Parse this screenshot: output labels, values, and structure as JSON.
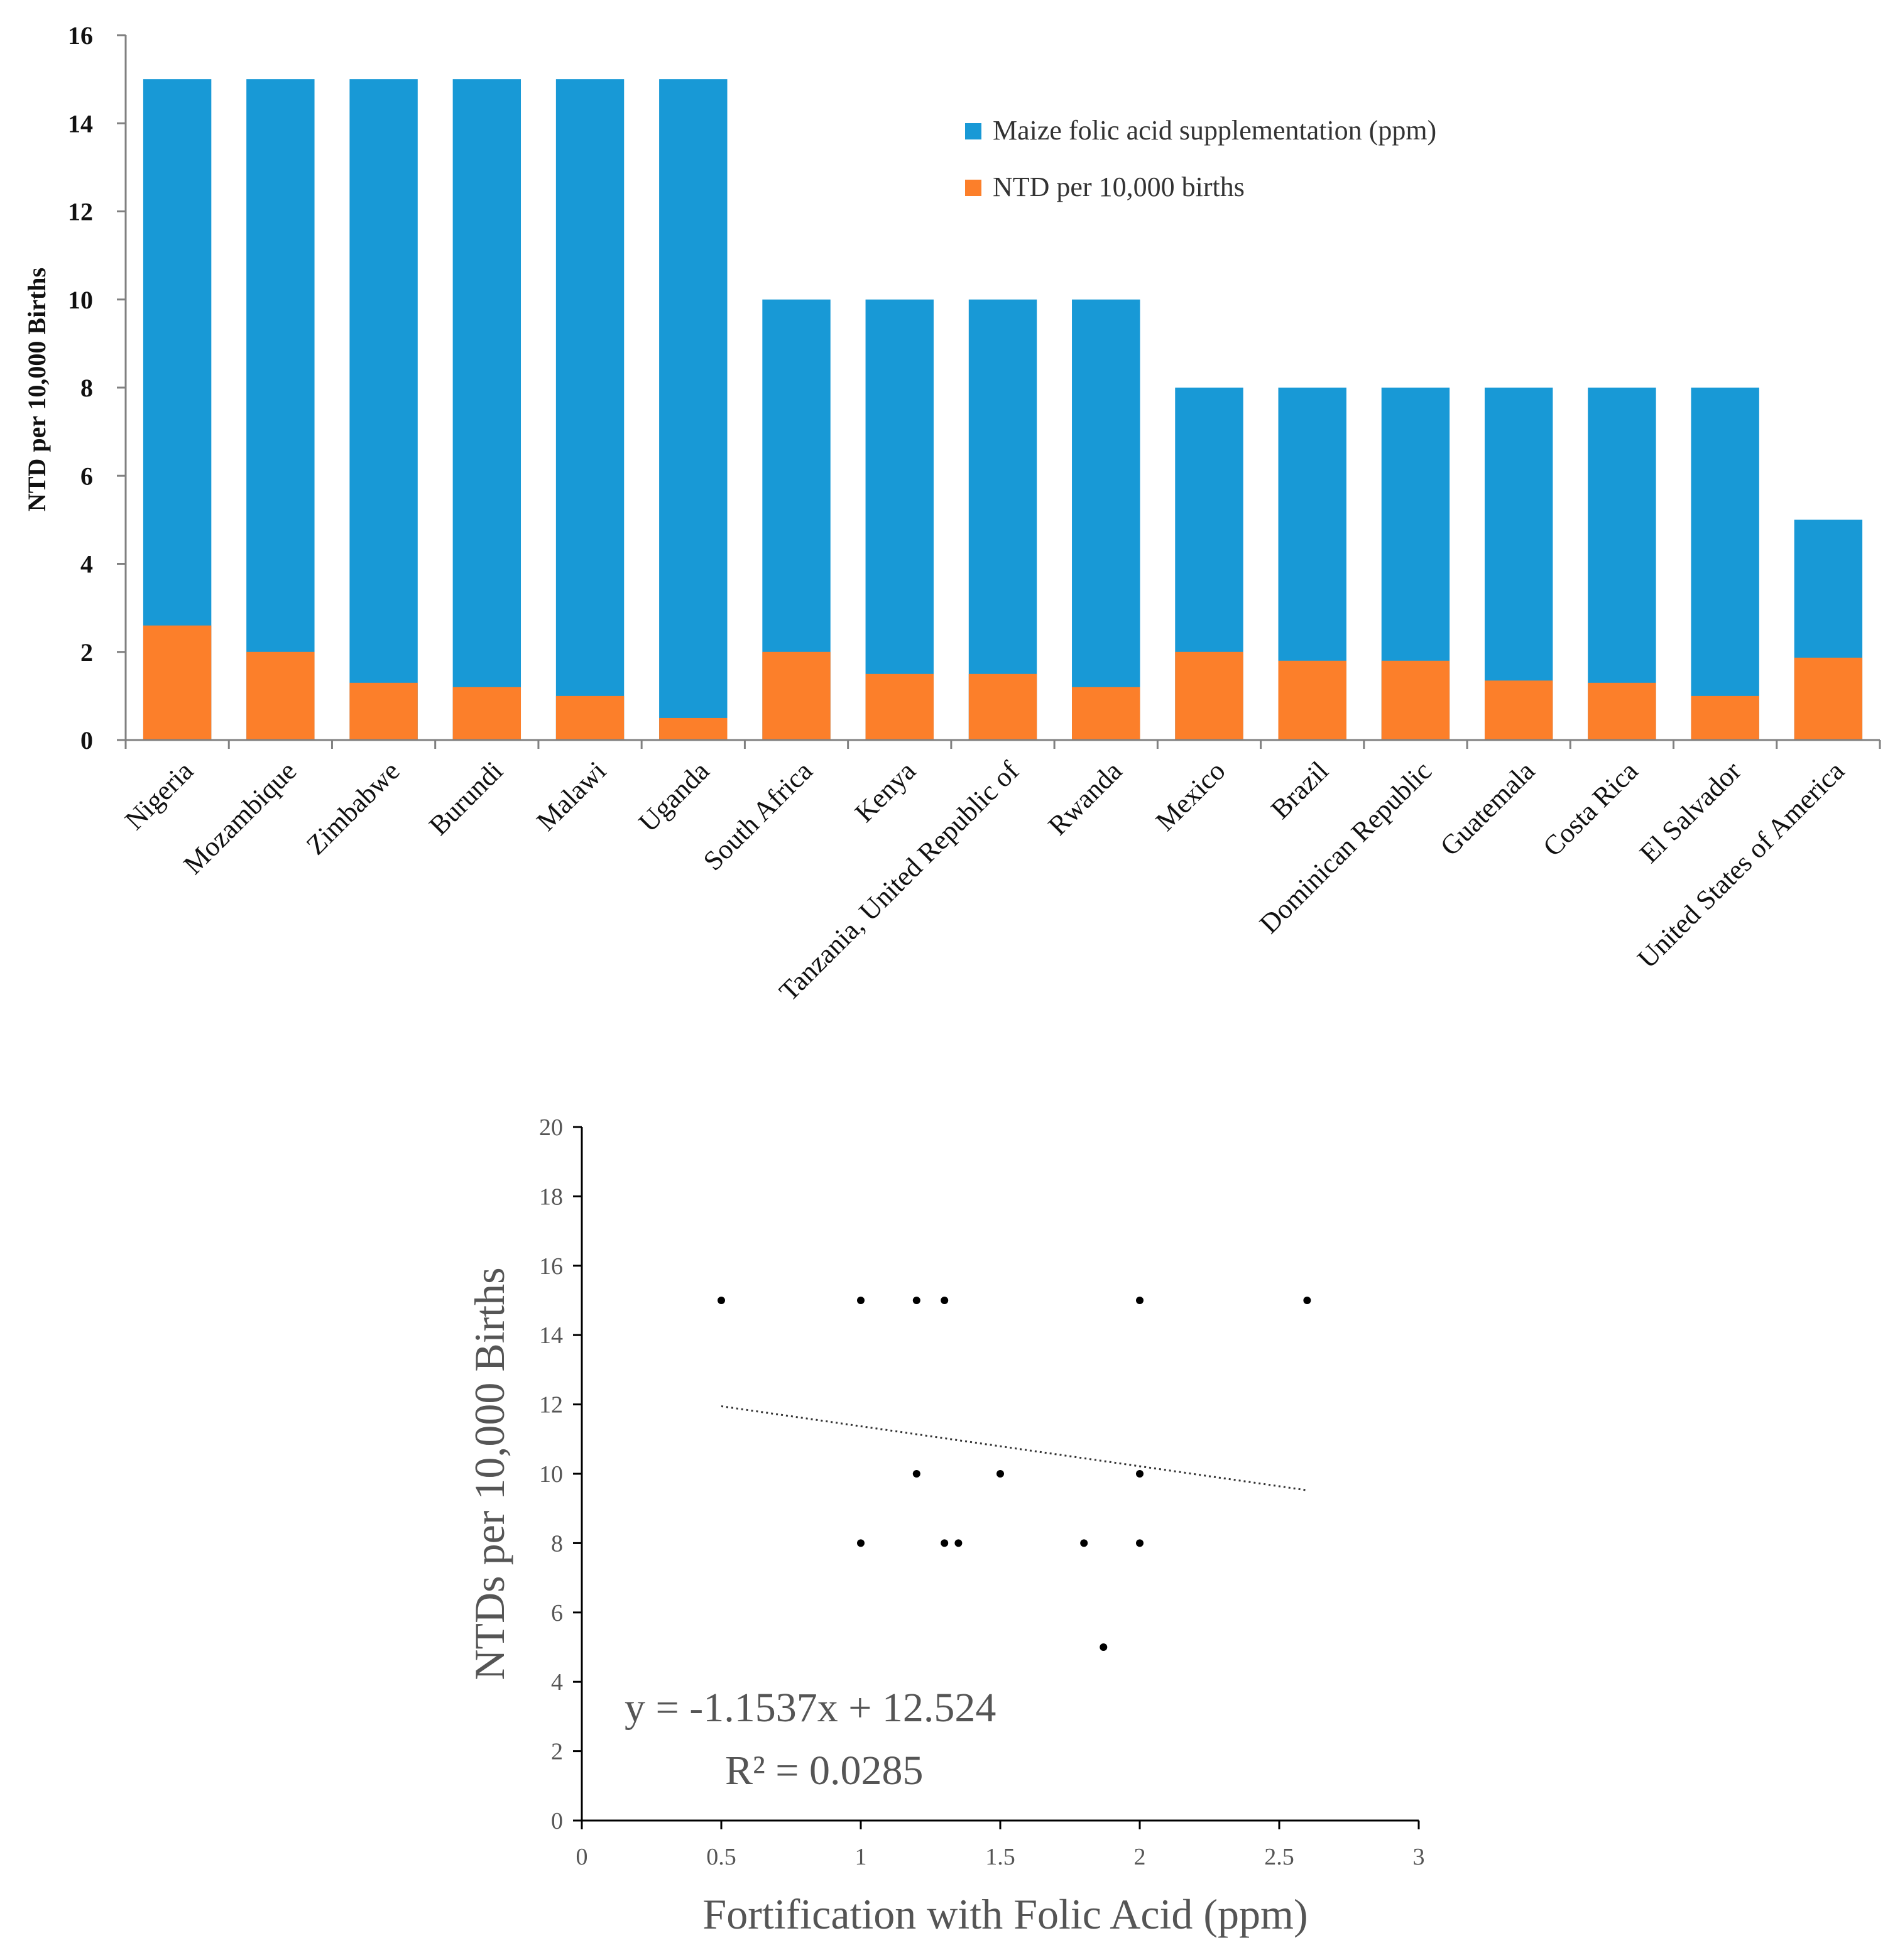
{
  "colors": {
    "blue": "#1899D6",
    "orange": "#FC7F2A",
    "axis": "#808080",
    "text": "#111111",
    "scatter_text": "#555555",
    "point": "#000000"
  },
  "chart_data": [
    {
      "type": "bar",
      "stacked": false,
      "overlaid": true,
      "categories": [
        "Nigeria",
        "Mozambique",
        "Zimbabwe",
        "Burundi",
        "Malawi",
        "Uganda",
        "South Africa",
        "Kenya",
        "Tanzania, United Republic of",
        "Rwanda",
        "Mexico",
        "Brazil",
        "Dominican Republic",
        "Guatemala",
        "Costa Rica",
        "El Salvador",
        "United States of America"
      ],
      "series": [
        {
          "name": "Maize folic acid supplementation (ppm)",
          "color": "#1899D6",
          "values": [
            15,
            15,
            15,
            15,
            15,
            15,
            10,
            10,
            10,
            10,
            8,
            8,
            8,
            8,
            8,
            8,
            5
          ]
        },
        {
          "name": "NTD per 10,000 births",
          "color": "#FC7F2A",
          "values": [
            2.6,
            2.0,
            1.3,
            1.2,
            1.0,
            0.5,
            2.0,
            1.5,
            1.5,
            1.2,
            2.0,
            1.8,
            1.8,
            1.35,
            1.3,
            1.0,
            1.87
          ]
        }
      ],
      "title": "",
      "xlabel": "",
      "ylabel": "NTD per 10,000 Births",
      "ylim": [
        0,
        16
      ],
      "yticks": [
        "0",
        "2",
        "4",
        "6",
        "8",
        "10",
        "12",
        "14",
        "16"
      ],
      "legend_position": "top-right",
      "grid": false
    },
    {
      "type": "scatter",
      "points": [
        {
          "x": 0.5,
          "y": 15
        },
        {
          "x": 1.0,
          "y": 15
        },
        {
          "x": 1.2,
          "y": 15
        },
        {
          "x": 1.3,
          "y": 15
        },
        {
          "x": 2.0,
          "y": 15
        },
        {
          "x": 2.6,
          "y": 15
        },
        {
          "x": 1.2,
          "y": 10
        },
        {
          "x": 1.5,
          "y": 10
        },
        {
          "x": 2.0,
          "y": 10
        },
        {
          "x": 1.0,
          "y": 8
        },
        {
          "x": 1.3,
          "y": 8
        },
        {
          "x": 1.35,
          "y": 8
        },
        {
          "x": 1.8,
          "y": 8
        },
        {
          "x": 2.0,
          "y": 8
        },
        {
          "x": 1.87,
          "y": 5
        }
      ],
      "trendline": {
        "slope": -1.1537,
        "intercept": 12.524,
        "x_range": [
          0.5,
          2.6
        ],
        "style": "dotted"
      },
      "equation": "y = -1.1537x + 12.524",
      "r_squared": "R² = 0.0285",
      "xlabel": "Fortification with Folic Acid (ppm)",
      "ylabel": "NTDs per 10,000 Births",
      "xlim": [
        0,
        3
      ],
      "ylim": [
        0,
        20
      ],
      "xticks": [
        "0",
        "0.5",
        "1",
        "1.5",
        "2",
        "2.5",
        "3"
      ],
      "yticks": [
        "0",
        "2",
        "4",
        "6",
        "8",
        "10",
        "12",
        "14",
        "16",
        "18",
        "20"
      ],
      "grid": false
    }
  ]
}
